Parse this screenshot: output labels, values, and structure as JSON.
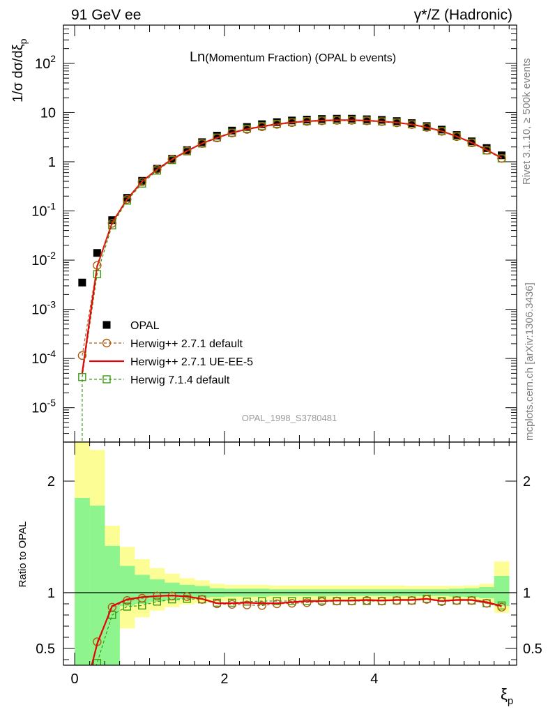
{
  "header": {
    "left": "91 GeV ee",
    "right": "γ*/Z (Hadronic)"
  },
  "side_text": {
    "rivet": "Rivet 3.1.10, ≥ 500k events",
    "mcplots": "mcplots.cern.ch [arXiv:1306.3436]"
  },
  "chart_data": [
    {
      "type": "scatter",
      "title_main": "Ln",
      "title_rest": "(Momentum Fraction) (OPAL b events)",
      "ylabel": "1/σ dσ/dξ",
      "ylabel_sub": "p",
      "yscale": "log",
      "xlim": [
        -0.15,
        5.9
      ],
      "ylim": [
        2e-06,
        600
      ],
      "watermark": "OPAL_1998_S3780481",
      "ytick_labels": [
        "10^-5",
        "10^-4",
        "10^-3",
        "10^-2",
        "10^-1",
        "1",
        "10",
        "10^2"
      ],
      "legend_position": "lower-left",
      "x": [
        0.1,
        0.3,
        0.5,
        0.7,
        0.9,
        1.1,
        1.3,
        1.5,
        1.7,
        1.9,
        2.1,
        2.3,
        2.5,
        2.7,
        2.9,
        3.1,
        3.3,
        3.5,
        3.7,
        3.9,
        4.1,
        4.3,
        4.5,
        4.7,
        4.9,
        5.1,
        5.3,
        5.5,
        5.7
      ],
      "series": [
        {
          "name": "OPAL",
          "color": "#000000",
          "marker": "filled-square",
          "values": [
            0.0035,
            0.014,
            0.065,
            0.185,
            0.41,
            0.72,
            1.15,
            1.72,
            2.5,
            3.4,
            4.3,
            5.1,
            5.8,
            6.4,
            6.9,
            7.2,
            7.4,
            7.5,
            7.5,
            7.3,
            7.1,
            6.7,
            6.1,
            5.3,
            4.5,
            3.5,
            2.6,
            1.9,
            1.35
          ]
        },
        {
          "name": "Herwig++ 2.7.1 default",
          "color": "#b05a10",
          "marker": "open-circle",
          "dashed": true,
          "values": [
            0.000115,
            0.0078,
            0.056,
            0.172,
            0.39,
            0.7,
            1.12,
            1.66,
            2.35,
            3.05,
            3.85,
            4.55,
            5.15,
            5.75,
            6.25,
            6.6,
            6.8,
            6.95,
            6.95,
            6.8,
            6.55,
            6.2,
            5.7,
            5.0,
            4.15,
            3.25,
            2.42,
            1.72,
            1.17
          ]
        },
        {
          "name": "Herwig++ 2.7.1 UE-EE-5",
          "color": "#e8000b",
          "marker": "line",
          "dashed": false,
          "values": [
            5e-05,
            0.0075,
            0.057,
            0.174,
            0.395,
            0.7,
            1.12,
            1.66,
            2.36,
            3.07,
            3.88,
            4.6,
            5.2,
            5.8,
            6.3,
            6.65,
            6.85,
            7.0,
            7.0,
            6.85,
            6.6,
            6.25,
            5.75,
            5.0,
            4.2,
            3.28,
            2.45,
            1.74,
            1.19
          ]
        },
        {
          "name": "Herwig 7.1.4 default",
          "color": "#3a9a10",
          "marker": "open-square",
          "dashed": true,
          "values": [
            4.2e-05,
            0.0052,
            0.051,
            0.162,
            0.36,
            0.66,
            1.08,
            1.63,
            2.35,
            3.1,
            3.9,
            4.7,
            5.3,
            5.9,
            6.35,
            6.7,
            6.9,
            7.0,
            7.0,
            6.85,
            6.6,
            6.3,
            5.75,
            5.05,
            4.2,
            3.3,
            2.45,
            1.7,
            1.17
          ]
        }
      ]
    },
    {
      "type": "line",
      "ylabel": "Ratio to OPAL",
      "xlabel": "ξ",
      "xlabel_sub": "p",
      "xlim": [
        -0.15,
        5.9
      ],
      "ylim": [
        0.35,
        2.35
      ],
      "xticks": [
        0,
        2,
        4
      ],
      "yticks": [
        0.5,
        1,
        2
      ],
      "reference_line": 1,
      "band_bin_edges": [
        0.0,
        0.2,
        0.4,
        0.6,
        0.8,
        1.0,
        1.2,
        1.4,
        1.6,
        1.8,
        2.0,
        2.2,
        2.4,
        2.6,
        2.8,
        3.0,
        3.2,
        3.4,
        3.6,
        3.8,
        4.0,
        4.2,
        4.4,
        4.6,
        4.8,
        5.0,
        5.2,
        5.4,
        5.6,
        5.8
      ],
      "stat_band": {
        "color": "#8ef58e",
        "upper": [
          1.85,
          1.78,
          1.42,
          1.24,
          1.16,
          1.12,
          1.09,
          1.07,
          1.06,
          1.04,
          1.035,
          1.035,
          1.035,
          1.03,
          1.03,
          1.03,
          1.03,
          1.03,
          1.03,
          1.03,
          1.03,
          1.03,
          1.03,
          1.03,
          1.03,
          1.035,
          1.04,
          1.05,
          1.15
        ],
        "lower": [
          0.2,
          0.2,
          0.2,
          0.88,
          0.9,
          0.92,
          0.93,
          0.945,
          0.955,
          0.96,
          0.965,
          0.965,
          0.965,
          0.97,
          0.97,
          0.97,
          0.97,
          0.97,
          0.97,
          0.97,
          0.97,
          0.97,
          0.97,
          0.97,
          0.97,
          0.965,
          0.96,
          0.95,
          0.88
        ]
      },
      "total_band": {
        "color": "#fdfd96",
        "upper": [
          2.35,
          2.28,
          1.6,
          1.41,
          1.3,
          1.22,
          1.17,
          1.13,
          1.11,
          1.08,
          1.07,
          1.07,
          1.07,
          1.065,
          1.065,
          1.065,
          1.065,
          1.065,
          1.065,
          1.065,
          1.065,
          1.065,
          1.06,
          1.06,
          1.06,
          1.06,
          1.065,
          1.08,
          1.28
        ],
        "lower": [
          0.2,
          0.2,
          0.2,
          0.68,
          0.78,
          0.84,
          0.87,
          0.895,
          0.91,
          0.92,
          0.925,
          0.93,
          0.93,
          0.935,
          0.935,
          0.935,
          0.935,
          0.935,
          0.935,
          0.935,
          0.935,
          0.935,
          0.935,
          0.935,
          0.935,
          0.93,
          0.925,
          0.91,
          0.82
        ]
      },
      "series": [
        {
          "name": "Herwig++ 2.7.1 default",
          "color": "#b05a10",
          "marker": "open-circle",
          "dashed": true,
          "x": [
            0.3,
            0.5,
            0.7,
            0.9,
            1.1,
            1.3,
            1.5,
            1.7,
            1.9,
            2.1,
            2.3,
            2.5,
            2.7,
            2.9,
            3.1,
            3.3,
            3.5,
            3.7,
            3.9,
            4.1,
            4.3,
            4.5,
            4.7,
            4.9,
            5.1,
            5.3,
            5.5,
            5.7
          ],
          "values": [
            0.56,
            0.87,
            0.93,
            0.95,
            0.97,
            0.97,
            0.965,
            0.94,
            0.9,
            0.895,
            0.89,
            0.885,
            0.9,
            0.905,
            0.91,
            0.92,
            0.925,
            0.925,
            0.93,
            0.925,
            0.93,
            0.93,
            0.94,
            0.92,
            0.93,
            0.93,
            0.905,
            0.87
          ]
        },
        {
          "name": "Herwig++ 2.7.1 UE-EE-5",
          "color": "#e8000b",
          "marker": "line",
          "dashed": false,
          "x": [
            0.1,
            0.3,
            0.5,
            0.7,
            0.9,
            1.1,
            1.3,
            1.5,
            1.7,
            1.9,
            2.1,
            2.3,
            2.5,
            2.7,
            2.9,
            3.1,
            3.3,
            3.5,
            3.7,
            3.9,
            4.1,
            4.3,
            4.5,
            4.7,
            4.9,
            5.1,
            5.3,
            5.5,
            5.7
          ],
          "values": [
            0.01,
            0.54,
            0.88,
            0.94,
            0.96,
            0.97,
            0.975,
            0.965,
            0.945,
            0.905,
            0.905,
            0.91,
            0.905,
            0.905,
            0.915,
            0.925,
            0.925,
            0.93,
            0.93,
            0.935,
            0.93,
            0.935,
            0.935,
            0.945,
            0.925,
            0.935,
            0.935,
            0.915,
            0.88
          ]
        },
        {
          "name": "Herwig 7.1.4 default",
          "color": "#3a9a10",
          "marker": "open-square",
          "dashed": true,
          "x": [
            0.1,
            0.3,
            0.5,
            0.7,
            0.9,
            1.1,
            1.3,
            1.5,
            1.7,
            1.9,
            2.1,
            2.3,
            2.5,
            2.7,
            2.9,
            3.1,
            3.3,
            3.5,
            3.7,
            3.9,
            4.1,
            4.3,
            4.5,
            4.7,
            4.9,
            5.1,
            5.3,
            5.5,
            5.7
          ],
          "values": [
            0.01,
            0.37,
            0.8,
            0.875,
            0.885,
            0.92,
            0.94,
            0.945,
            0.94,
            0.91,
            0.91,
            0.92,
            0.925,
            0.925,
            0.925,
            0.925,
            0.93,
            0.925,
            0.925,
            0.925,
            0.925,
            0.93,
            0.93,
            0.945,
            0.925,
            0.93,
            0.93,
            0.905,
            0.885
          ]
        }
      ]
    }
  ]
}
